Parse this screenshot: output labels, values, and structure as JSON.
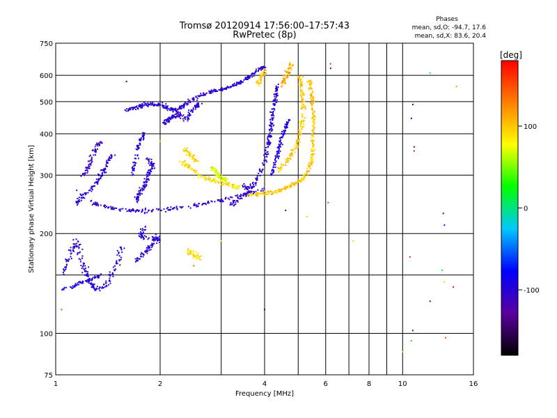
{
  "chart_data": {
    "type": "scatter",
    "title": "Tromsø 20120914 17:56:00–17:57:43",
    "subtitle": "RwPretec (8p)",
    "xlabel": "Frequency [MHz]",
    "ylabel": "Stationary phase Virtual Height [km]",
    "x_scale": "log",
    "y_scale": "log",
    "xlim": [
      1,
      16
    ],
    "ylim": [
      75,
      750
    ],
    "x_ticks": [
      {
        "v": 1,
        "label": "1"
      },
      {
        "v": 2,
        "label": "2"
      },
      {
        "v": 4,
        "label": "4"
      },
      {
        "v": 6,
        "label": "6"
      },
      {
        "v": 8,
        "label": "8"
      },
      {
        "v": 10,
        "label": "10"
      },
      {
        "v": 16,
        "label": "16"
      }
    ],
    "x_grid": [
      2,
      3,
      4,
      5,
      6,
      7,
      8,
      9,
      10
    ],
    "y_ticks": [
      {
        "v": 75,
        "label": "75"
      },
      {
        "v": 100,
        "label": "100"
      },
      {
        "v": 200,
        "label": "200"
      },
      {
        "v": 300,
        "label": "300"
      },
      {
        "v": 400,
        "label": "400"
      },
      {
        "v": 500,
        "label": "500"
      },
      {
        "v": 600,
        "label": "600"
      },
      {
        "v": 750,
        "label": "750"
      }
    ],
    "y_grid": [
      100,
      150,
      200,
      300,
      400,
      500,
      600
    ],
    "grid": true,
    "legend": {
      "heading": "Phases",
      "line1": "mean, sd,O: -94.7, 17.6",
      "line2": "mean, sd,X:  83.6, 20.4"
    },
    "colorbar": {
      "label": "[deg]",
      "range": [
        -180,
        180
      ],
      "ticks": [
        {
          "v": 100,
          "label": "100"
        },
        {
          "v": 0,
          "label": "0"
        },
        {
          "v": -100,
          "label": "-100"
        }
      ],
      "stops": [
        "#000000",
        "#5a00a0",
        "#0000ff",
        "#00c8ff",
        "#00ff00",
        "#ffff00",
        "#ff8000",
        "#ff0000"
      ]
    },
    "traces": [
      {
        "phase": -100,
        "spread": 0.008,
        "points": [
          [
            1.05,
            150
          ],
          [
            1.1,
            175
          ],
          [
            1.15,
            190
          ],
          [
            1.2,
            160
          ],
          [
            1.25,
            145
          ],
          [
            1.3,
            135
          ],
          [
            1.4,
            140
          ],
          [
            1.5,
            160
          ],
          [
            1.55,
            185
          ]
        ]
      },
      {
        "phase": -95,
        "spread": 0.006,
        "points": [
          [
            1.05,
            135
          ],
          [
            1.15,
            140
          ],
          [
            1.25,
            145
          ],
          [
            1.35,
            150
          ]
        ]
      },
      {
        "phase": -100,
        "spread": 0.008,
        "points": [
          [
            1.7,
            165
          ],
          [
            1.8,
            175
          ],
          [
            1.9,
            185
          ],
          [
            2.0,
            195
          ],
          [
            1.75,
            195
          ],
          [
            1.8,
            210
          ]
        ]
      },
      {
        "phase": -100,
        "spread": 0.008,
        "points": [
          [
            1.15,
            245
          ],
          [
            1.2,
            260
          ],
          [
            1.3,
            280
          ],
          [
            1.35,
            300
          ],
          [
            1.4,
            320
          ],
          [
            1.45,
            345
          ]
        ]
      },
      {
        "phase": -105,
        "spread": 0.007,
        "points": [
          [
            1.2,
            300
          ],
          [
            1.25,
            320
          ],
          [
            1.3,
            360
          ],
          [
            1.35,
            380
          ]
        ]
      },
      {
        "phase": -100,
        "spread": 0.006,
        "points": [
          [
            1.25,
            250
          ],
          [
            1.4,
            240
          ],
          [
            1.55,
            235
          ],
          [
            1.7,
            234
          ],
          [
            1.9,
            234
          ],
          [
            2.2,
            238
          ],
          [
            2.6,
            245
          ],
          [
            3.0,
            252
          ],
          [
            3.5,
            262
          ],
          [
            4.0,
            272
          ]
        ]
      },
      {
        "phase": -100,
        "spread": 0.008,
        "points": [
          [
            1.7,
            250
          ],
          [
            1.75,
            265
          ],
          [
            1.8,
            280
          ],
          [
            1.85,
            300
          ],
          [
            1.9,
            320
          ],
          [
            1.85,
            340
          ]
        ]
      },
      {
        "phase": -95,
        "spread": 0.007,
        "points": [
          [
            1.65,
            300
          ],
          [
            1.7,
            330
          ],
          [
            1.75,
            380
          ],
          [
            1.8,
            400
          ]
        ]
      },
      {
        "phase": -100,
        "spread": 0.006,
        "points": [
          [
            1.6,
            470
          ],
          [
            1.7,
            480
          ],
          [
            1.8,
            490
          ],
          [
            1.9,
            490
          ],
          [
            2.0,
            488
          ],
          [
            2.1,
            480
          ],
          [
            2.2,
            470
          ],
          [
            2.3,
            480
          ],
          [
            2.4,
            500
          ],
          [
            2.6,
            520
          ],
          [
            2.8,
            535
          ],
          [
            3.0,
            545
          ],
          [
            3.2,
            555
          ],
          [
            3.4,
            570
          ],
          [
            3.6,
            590
          ],
          [
            3.8,
            620
          ],
          [
            4.0,
            640
          ]
        ]
      },
      {
        "phase": -100,
        "spread": 0.008,
        "points": [
          [
            2.05,
            430
          ],
          [
            2.1,
            440
          ],
          [
            2.2,
            450
          ],
          [
            2.25,
            460
          ],
          [
            2.4,
            440
          ],
          [
            2.5,
            480
          ],
          [
            2.6,
            490
          ]
        ]
      },
      {
        "phase": -100,
        "spread": 0.007,
        "points": [
          [
            3.6,
            270
          ],
          [
            3.8,
            290
          ],
          [
            4.0,
            330
          ],
          [
            4.1,
            370
          ],
          [
            4.15,
            400
          ],
          [
            4.2,
            440
          ],
          [
            4.25,
            480
          ],
          [
            4.3,
            520
          ],
          [
            4.35,
            560
          ]
        ]
      },
      {
        "phase": -95,
        "spread": 0.007,
        "points": [
          [
            4.2,
            300
          ],
          [
            4.3,
            330
          ],
          [
            4.4,
            360
          ],
          [
            4.5,
            390
          ],
          [
            4.6,
            420
          ],
          [
            4.7,
            440
          ]
        ]
      },
      {
        "phase": -105,
        "spread": 0.008,
        "points": [
          [
            3.2,
            245
          ],
          [
            3.4,
            255
          ],
          [
            3.6,
            268
          ],
          [
            3.5,
            280
          ]
        ]
      },
      {
        "phase": 100,
        "spread": 0.006,
        "points": [
          [
            3.6,
            262
          ],
          [
            3.9,
            263
          ],
          [
            4.2,
            266
          ],
          [
            4.5,
            272
          ],
          [
            4.8,
            280
          ],
          [
            5.1,
            290
          ],
          [
            5.3,
            305
          ],
          [
            5.45,
            330
          ],
          [
            5.5,
            360
          ],
          [
            5.52,
            400
          ],
          [
            5.53,
            450
          ],
          [
            5.5,
            500
          ],
          [
            5.45,
            540
          ],
          [
            5.4,
            580
          ]
        ]
      },
      {
        "phase": 100,
        "spread": 0.008,
        "points": [
          [
            4.4,
            310
          ],
          [
            4.6,
            330
          ],
          [
            4.8,
            350
          ],
          [
            5.0,
            380
          ],
          [
            5.1,
            420
          ],
          [
            5.2,
            470
          ],
          [
            5.15,
            510
          ],
          [
            5.1,
            560
          ],
          [
            5.0,
            600
          ]
        ]
      },
      {
        "phase": 110,
        "spread": 0.008,
        "points": [
          [
            4.5,
            560
          ],
          [
            4.6,
            590
          ],
          [
            4.7,
            620
          ],
          [
            4.8,
            650
          ]
        ]
      },
      {
        "phase": 90,
        "spread": 0.008,
        "points": [
          [
            2.3,
            330
          ],
          [
            2.4,
            320
          ],
          [
            2.6,
            300
          ],
          [
            2.8,
            290
          ],
          [
            3.0,
            285
          ],
          [
            3.2,
            280
          ],
          [
            3.4,
            275
          ]
        ]
      },
      {
        "phase": 70,
        "spread": 0.008,
        "points": [
          [
            2.8,
            320
          ],
          [
            2.9,
            305
          ],
          [
            3.0,
            295
          ],
          [
            3.1,
            290
          ]
        ]
      },
      {
        "phase": 95,
        "spread": 0.008,
        "points": [
          [
            2.35,
            360
          ],
          [
            2.45,
            345
          ],
          [
            2.55,
            330
          ]
        ]
      },
      {
        "phase": 90,
        "spread": 0.01,
        "points": [
          [
            2.4,
            180
          ],
          [
            2.5,
            172
          ],
          [
            2.6,
            168
          ]
        ]
      },
      {
        "phase": 100,
        "spread": 0.008,
        "points": [
          [
            3.8,
            560
          ],
          [
            3.9,
            590
          ],
          [
            4.0,
            620
          ]
        ]
      }
    ],
    "isolated_points": [
      {
        "x": 1.04,
        "y": 118,
        "phase": 150
      },
      {
        "x": 1.15,
        "y": 270,
        "phase": -100
      },
      {
        "x": 1.6,
        "y": 575,
        "phase": -110
      },
      {
        "x": 2.0,
        "y": 380,
        "phase": 90
      },
      {
        "x": 2.5,
        "y": 160,
        "phase": 150
      },
      {
        "x": 3.0,
        "y": 190,
        "phase": 90
      },
      {
        "x": 4.0,
        "y": 118,
        "phase": -100
      },
      {
        "x": 4.6,
        "y": 235,
        "phase": -100
      },
      {
        "x": 5.3,
        "y": 225,
        "phase": 100
      },
      {
        "x": 6.1,
        "y": 248,
        "phase": 150
      },
      {
        "x": 6.2,
        "y": 650,
        "phase": 160
      },
      {
        "x": 6.2,
        "y": 630,
        "phase": -130
      },
      {
        "x": 7.2,
        "y": 190,
        "phase": 60
      },
      {
        "x": 10.0,
        "y": 88,
        "phase": 60
      },
      {
        "x": 10.5,
        "y": 170,
        "phase": 170
      },
      {
        "x": 10.6,
        "y": 95,
        "phase": 10
      },
      {
        "x": 10.7,
        "y": 490,
        "phase": -130
      },
      {
        "x": 10.8,
        "y": 365,
        "phase": -130
      },
      {
        "x": 10.8,
        "y": 355,
        "phase": 175
      },
      {
        "x": 12.0,
        "y": 610,
        "phase": 20
      },
      {
        "x": 12.0,
        "y": 125,
        "phase": -100
      },
      {
        "x": 13.0,
        "y": 155,
        "phase": 20
      },
      {
        "x": 13.1,
        "y": 230,
        "phase": -100
      },
      {
        "x": 13.2,
        "y": 212,
        "phase": -100
      },
      {
        "x": 13.2,
        "y": 143,
        "phase": 60
      },
      {
        "x": 13.3,
        "y": 97,
        "phase": 150
      },
      {
        "x": 14.0,
        "y": 138,
        "phase": 175
      },
      {
        "x": 14.3,
        "y": 555,
        "phase": 120
      },
      {
        "x": 10.6,
        "y": 445,
        "phase": -100
      },
      {
        "x": 10.7,
        "y": 102,
        "phase": -100
      }
    ]
  }
}
